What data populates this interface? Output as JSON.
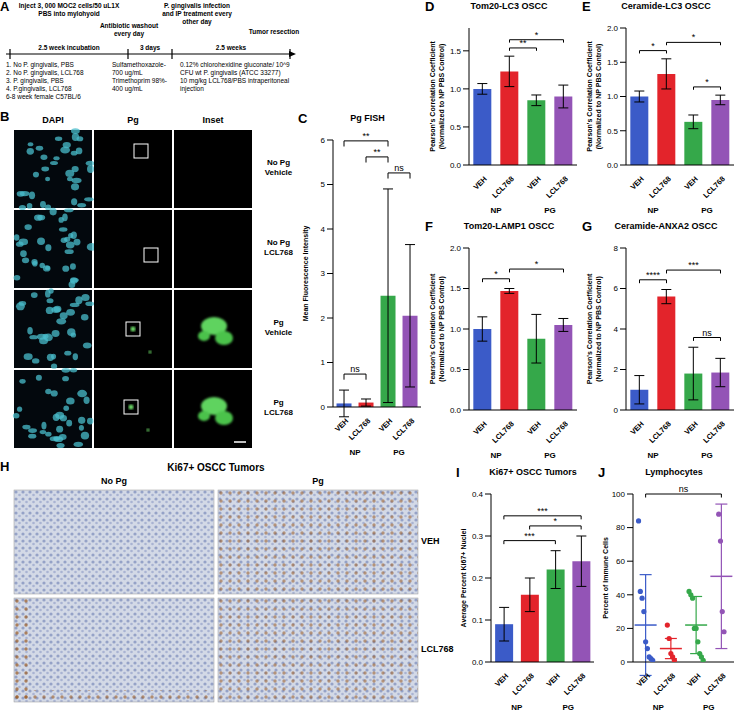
{
  "schematic": {
    "panel": "A",
    "steps": [
      {
        "label": "Inject 3, 000 MOC2 cells/50 uL1X PBS into mylohyoid",
        "details": [
          "1. No P. gingivalis, PBS",
          "2. No P. gingivalis, LCL768",
          "3. P. gingivalis, PBS",
          "4. P.gingivalis, LCL768",
          "6-8 week female C57BL/6"
        ]
      },
      {
        "label": "Antibiotic washout every day",
        "details": [
          "Sulfamethoxazole- 700 ug/mL",
          "Trimethoprim 98%- 400 ug/mL"
        ]
      },
      {
        "label": "P. gingivalis infection and IP treatment every other day",
        "details": [
          "0.12% chlorohexidine gluconate/ 10^9 CFU wt P. gingivalis (ATCC 33277)",
          "10 mg/kg LCL768/PBS intraperitoneal injection"
        ]
      },
      {
        "label": "Tumor resection"
      }
    ],
    "intervals": [
      "2.5 week incubation",
      "3 days",
      "2.5 weeks"
    ]
  },
  "fish_images": {
    "panel": "B",
    "columns": [
      "DAPI",
      "Pg",
      "Inset"
    ],
    "rows": [
      [
        "No Pg",
        "Vehicle"
      ],
      [
        "No Pg",
        "LCL768"
      ],
      [
        "Pg",
        "Vehicle"
      ],
      [
        "Pg",
        "LCL768"
      ]
    ]
  },
  "ihc_images": {
    "panel": "H",
    "title": "Ki67+ OSCC Tumors",
    "columns": [
      "No Pg",
      "Pg"
    ],
    "rows": [
      "VEH",
      "LCL768"
    ]
  },
  "chart_data": [
    {
      "panel": "C",
      "type": "bar",
      "title": "Pg FISH",
      "categories": [
        "VEH",
        "LCL768",
        "VEH",
        "LCL768"
      ],
      "groups": [
        "NP",
        "NP",
        "PG",
        "PG"
      ],
      "colors": [
        "#3b5bc8",
        "#e3242b",
        "#35a84a",
        "#9354b6"
      ],
      "values": [
        0.08,
        0.1,
        2.5,
        2.05
      ],
      "errors": [
        0.3,
        0.08,
        2.4,
        1.6
      ],
      "y_label": [
        "Mean Fluorescence Intensity"
      ],
      "ylim": [
        0,
        6
      ],
      "yticks": [
        0,
        1,
        2,
        3,
        4,
        5,
        6
      ],
      "significance": [
        {
          "from": 0,
          "to": 1,
          "label": "ns"
        },
        {
          "from": 2,
          "to": 3,
          "label": "ns"
        },
        {
          "from": 1,
          "to": 2,
          "label": "**"
        },
        {
          "from": 0,
          "to": 2,
          "label": "**"
        }
      ]
    },
    {
      "panel": "D",
      "type": "bar",
      "title": "Tom20-LC3 OSCC",
      "categories": [
        "VEH",
        "LCL768",
        "VEH",
        "LCL768"
      ],
      "groups": [
        "NP",
        "NP",
        "PG",
        "PG"
      ],
      "colors": [
        "#3b5bc8",
        "#e3242b",
        "#35a84a",
        "#9354b6"
      ],
      "values": [
        1.0,
        1.23,
        0.85,
        0.9
      ],
      "errors": [
        0.07,
        0.2,
        0.07,
        0.15
      ],
      "y_label": [
        "Pearson's Correlation Coefficient",
        "(Normalized to NP PBS Control)"
      ],
      "ylim": [
        0,
        1.8
      ],
      "yticks": [
        {
          "value": 0,
          "label": "0.0"
        },
        {
          "value": 0.5,
          "label": "0.5"
        },
        {
          "value": 1,
          "label": "1.0"
        },
        {
          "value": 1.5,
          "label": "1.5"
        }
      ],
      "significance": [
        {
          "from": 1,
          "to": 2,
          "label": "**"
        },
        {
          "from": 1,
          "to": 3,
          "label": "*"
        }
      ]
    },
    {
      "panel": "E",
      "type": "bar",
      "title": "Ceramide-LC3 OSCC",
      "categories": [
        "VEH",
        "LCL768",
        "VEH",
        "LCL768"
      ],
      "groups": [
        "NP",
        "NP",
        "PG",
        "PG"
      ],
      "colors": [
        "#3b5bc8",
        "#e3242b",
        "#35a84a",
        "#9354b6"
      ],
      "values": [
        1.0,
        1.33,
        0.63,
        0.95
      ],
      "errors": [
        0.08,
        0.22,
        0.1,
        0.07
      ],
      "y_label": [
        "Pearson's Correlation Coefficient",
        "(Normalized to NP PBS Control)"
      ],
      "ylim": [
        0,
        2
      ],
      "yticks": [
        {
          "value": 0,
          "label": "0.0"
        },
        {
          "value": 0.5,
          "label": "0.5"
        },
        {
          "value": 1,
          "label": "1.0"
        },
        {
          "value": 1.5,
          "label": "1.5"
        },
        {
          "value": 2,
          "label": "2.0"
        }
      ],
      "significance": [
        {
          "from": 0,
          "to": 1,
          "label": "*"
        },
        {
          "from": 2,
          "to": 3,
          "label": "*"
        },
        {
          "from": 1,
          "to": 3,
          "label": "*"
        }
      ]
    },
    {
      "panel": "F",
      "type": "bar",
      "title": "Tom20-LAMP1 OSCC",
      "categories": [
        "VEH",
        "LCL768",
        "VEH",
        "LCL768"
      ],
      "groups": [
        "NP",
        "NP",
        "PG",
        "PG"
      ],
      "colors": [
        "#3b5bc8",
        "#e3242b",
        "#35a84a",
        "#9354b6"
      ],
      "values": [
        1.0,
        1.47,
        0.88,
        1.05
      ],
      "errors": [
        0.15,
        0.03,
        0.3,
        0.08
      ],
      "y_label": [
        "Pearson's Correlation Coefficient",
        "(Normalized to NP PBS Control)"
      ],
      "ylim": [
        0,
        2
      ],
      "yticks": [
        {
          "value": 0,
          "label": "0.0"
        },
        {
          "value": 0.5,
          "label": "0.5"
        },
        {
          "value": 1,
          "label": "1.0"
        },
        {
          "value": 1.5,
          "label": "1.5"
        },
        {
          "value": 2,
          "label": "2.0"
        }
      ],
      "significance": [
        {
          "from": 0,
          "to": 1,
          "label": "*"
        },
        {
          "from": 1,
          "to": 3,
          "label": "*"
        }
      ]
    },
    {
      "panel": "G",
      "type": "bar",
      "title": "Ceramide-ANXA2 OSCC",
      "categories": [
        "VEH",
        "LCL768",
        "VEH",
        "LCL768"
      ],
      "groups": [
        "NP",
        "NP",
        "PG",
        "PG"
      ],
      "colors": [
        "#3b5bc8",
        "#e3242b",
        "#35a84a",
        "#9354b6"
      ],
      "values": [
        1.0,
        5.6,
        1.8,
        1.85
      ],
      "errors": [
        0.7,
        0.35,
        1.3,
        0.7
      ],
      "y_label": [
        "Pearson's Correlation Coefficient",
        "(Normalized to NP PBS Control)"
      ],
      "ylim": [
        0,
        8
      ],
      "yticks": [
        0,
        2,
        4,
        6,
        8
      ],
      "significance": [
        {
          "from": 0,
          "to": 1,
          "label": "****"
        },
        {
          "from": 2,
          "to": 3,
          "label": "ns"
        },
        {
          "from": 1,
          "to": 3,
          "label": "***"
        }
      ]
    },
    {
      "panel": "I",
      "type": "bar",
      "title": "Ki67+ OSCC Tumors",
      "categories": [
        "VEH",
        "LCL768",
        "VEH",
        "LCL768"
      ],
      "groups": [
        "NP",
        "NP",
        "PG",
        "PG"
      ],
      "colors": [
        "#3b5bc8",
        "#e3242b",
        "#35a84a",
        "#9354b6"
      ],
      "values": [
        0.09,
        0.16,
        0.22,
        0.24
      ],
      "errors": [
        0.04,
        0.04,
        0.045,
        0.06
      ],
      "y_label": [
        "Average Percent Ki67+ Nuclei"
      ],
      "ylim": [
        0,
        0.4
      ],
      "yticks": [
        {
          "value": 0,
          "label": "0.0"
        },
        {
          "value": 0.1,
          "label": "0.1"
        },
        {
          "value": 0.2,
          "label": "0.2"
        },
        {
          "value": 0.3,
          "label": "0.3"
        },
        {
          "value": 0.4,
          "label": "0.4"
        }
      ],
      "significance": [
        {
          "from": 0,
          "to": 2,
          "label": "***"
        },
        {
          "from": 1,
          "to": 3,
          "label": "*"
        },
        {
          "from": 0,
          "to": 3,
          "label": "***"
        }
      ]
    },
    {
      "panel": "J",
      "type": "scatter",
      "title": "Lymphocytes",
      "categories": [
        "VEH",
        "LCL768",
        "VEH",
        "LCL768"
      ],
      "groups": [
        "NP",
        "NP",
        "PG",
        "PG"
      ],
      "colors": [
        "#3b5bc8",
        "#e3242b",
        "#35a84a",
        "#9354b6"
      ],
      "values": [
        22,
        8,
        22,
        51
      ],
      "errors": [
        30,
        6,
        17,
        43
      ],
      "points": [
        [
          84,
          42,
          38,
          30,
          12,
          8,
          3,
          2,
          1
        ],
        [
          22,
          14,
          5,
          3,
          1
        ],
        [
          42,
          40,
          38,
          20,
          20,
          12,
          5,
          3,
          1
        ],
        [
          88,
          72,
          30,
          18
        ]
      ],
      "y_label": [
        "Percent of Immune Cells"
      ],
      "ylim": [
        0,
        100
      ],
      "yticks": [
        0,
        20,
        40,
        60,
        80,
        100
      ],
      "significance": [
        {
          "from": 0,
          "to": 3,
          "label": "ns"
        }
      ]
    }
  ]
}
